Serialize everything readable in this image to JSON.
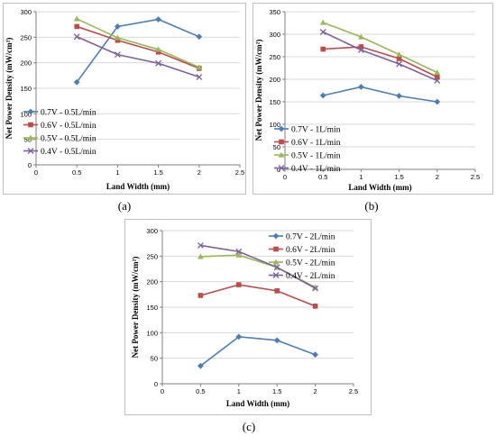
{
  "panel_labels": [
    "(a)",
    "(b)",
    "(c)"
  ],
  "colors": {
    "0.7V": "#4a7ebb",
    "0.6V": "#be4b48",
    "0.5V": "#98b954",
    "0.4V": "#7d60a0",
    "grid": "#d9d9d9",
    "axis": "#808080"
  },
  "chart_data": [
    {
      "type": "line",
      "panel": "(a)",
      "xlabel": "Land Width (mm)",
      "ylabel": "Net Power Density (mW/cm²)",
      "xlim": [
        0,
        2.5
      ],
      "ylim": [
        0,
        300
      ],
      "xticks": [
        "0",
        "0.5",
        "1",
        "1.5",
        "2",
        "2.5"
      ],
      "yticks": [
        "0",
        "50",
        "100",
        "150",
        "200",
        "250",
        "300"
      ],
      "grid": "horizontal",
      "legend": "bottom-left",
      "x": [
        0.5,
        1,
        1.5,
        2
      ],
      "series": [
        {
          "name": "0.7V - 0.5L/min",
          "marker": "diamond",
          "color": "#4a7ebb",
          "values": [
            162,
            271,
            285,
            251
          ]
        },
        {
          "name": "0.6V - 0.5L/min",
          "marker": "square",
          "color": "#be4b48",
          "values": [
            271,
            244,
            221,
            189
          ]
        },
        {
          "name": "0.5V - 0.5L/min",
          "marker": "triangle",
          "color": "#98b954",
          "values": [
            286,
            249,
            226,
            191
          ]
        },
        {
          "name": "0.4V - 0.5L/min",
          "marker": "x",
          "color": "#7d60a0",
          "values": [
            251,
            216,
            199,
            172
          ]
        }
      ]
    },
    {
      "type": "line",
      "panel": "(b)",
      "xlabel": "Land Width (mm)",
      "ylabel": "Net Power Density (mW/cm²)",
      "xlim": [
        0,
        2.5
      ],
      "ylim": [
        0,
        350
      ],
      "xticks": [
        "0",
        "0.5",
        "1",
        "1.5",
        "2",
        "2.5"
      ],
      "yticks": [
        "0",
        "50",
        "100",
        "150",
        "200",
        "250",
        "300",
        "350"
      ],
      "grid": "horizontal",
      "legend": "bottom-left",
      "x": [
        0.5,
        1,
        1.5,
        2
      ],
      "series": [
        {
          "name": "0.7V - 1L/min",
          "marker": "diamond",
          "color": "#4a7ebb",
          "values": [
            164,
            183,
            163,
            150
          ]
        },
        {
          "name": "0.6V - 1L/min",
          "marker": "square",
          "color": "#be4b48",
          "values": [
            267,
            272,
            246,
            205
          ]
        },
        {
          "name": "0.5V - 1L/min",
          "marker": "triangle",
          "color": "#98b954",
          "values": [
            326,
            294,
            255,
            215
          ]
        },
        {
          "name": "0.4V - 1L/min",
          "marker": "x",
          "color": "#7d60a0",
          "values": [
            305,
            265,
            234,
            197
          ]
        }
      ]
    },
    {
      "type": "line",
      "panel": "(c)",
      "xlabel": "Land Width (mm)",
      "ylabel": "Net Power Density (mW/cm²)",
      "xlim": [
        0,
        2.5
      ],
      "ylim": [
        0,
        300
      ],
      "xticks": [
        "0",
        "0.5",
        "1",
        "1.5",
        "2",
        "2.5"
      ],
      "yticks": [
        "0",
        "50",
        "100",
        "150",
        "200",
        "250",
        "300"
      ],
      "grid": "horizontal",
      "legend": "top-right",
      "x": [
        0.5,
        1,
        1.5,
        2
      ],
      "series": [
        {
          "name": "0.7V - 2L/min",
          "marker": "diamond",
          "color": "#4a7ebb",
          "values": [
            35,
            92,
            85,
            57
          ]
        },
        {
          "name": "0.6V - 2L/min",
          "marker": "square",
          "color": "#be4b48",
          "values": [
            173,
            194,
            182,
            152
          ]
        },
        {
          "name": "0.5V - 2L/min",
          "marker": "triangle",
          "color": "#98b954",
          "values": [
            249,
            252,
            228,
            189
          ]
        },
        {
          "name": "0.4V - 2L/min",
          "marker": "x",
          "color": "#7d60a0",
          "values": [
            271,
            259,
            228,
            187
          ]
        }
      ]
    }
  ]
}
